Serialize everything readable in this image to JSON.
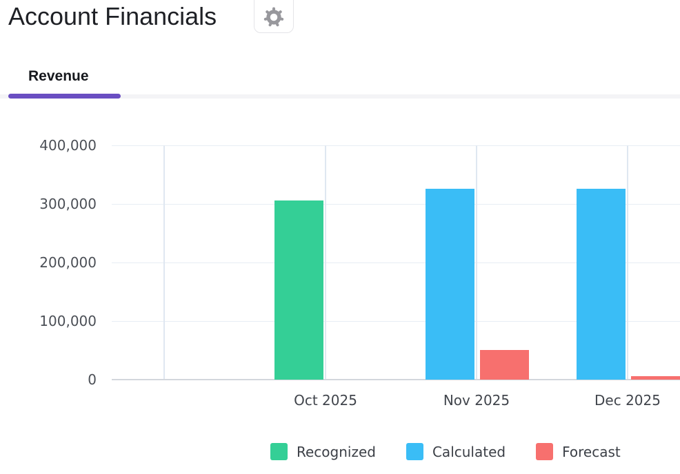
{
  "header": {
    "title": "Account Financials"
  },
  "tabs": {
    "active_tab": "Revenue",
    "items": [
      {
        "label": "Revenue",
        "active": true
      }
    ]
  },
  "colors": {
    "accent": "#6a4ec2",
    "recognized": "#34cf96",
    "calculated": "#3abdf6",
    "forecast": "#f7706e",
    "gridline": "#e7edf4",
    "axis_line": "#d3d7dc",
    "axis_text": "#4b4f56"
  },
  "chart_data": {
    "type": "bar",
    "title": "",
    "xlabel": "",
    "ylabel": "",
    "categories": [
      "Oct 2025",
      "Nov 2025",
      "Dec 2025"
    ],
    "series": [
      {
        "name": "Recognized",
        "color": "#34cf96",
        "stack": "actual",
        "values": [
          306000,
          0,
          0
        ]
      },
      {
        "name": "Calculated",
        "color": "#3abdf6",
        "stack": "actual",
        "values": [
          0,
          326000,
          326000
        ]
      },
      {
        "name": "Forecast",
        "color": "#f7706e",
        "stack": "forecast",
        "values": [
          0,
          51000,
          6000
        ]
      }
    ],
    "ylim": [
      0,
      400000
    ],
    "y_ticks": [
      0,
      100000,
      200000,
      300000,
      400000
    ],
    "y_tick_labels": [
      "0",
      "100,000",
      "200,000",
      "300,000",
      "400,000"
    ],
    "grid": true,
    "legend_position": "bottom"
  }
}
